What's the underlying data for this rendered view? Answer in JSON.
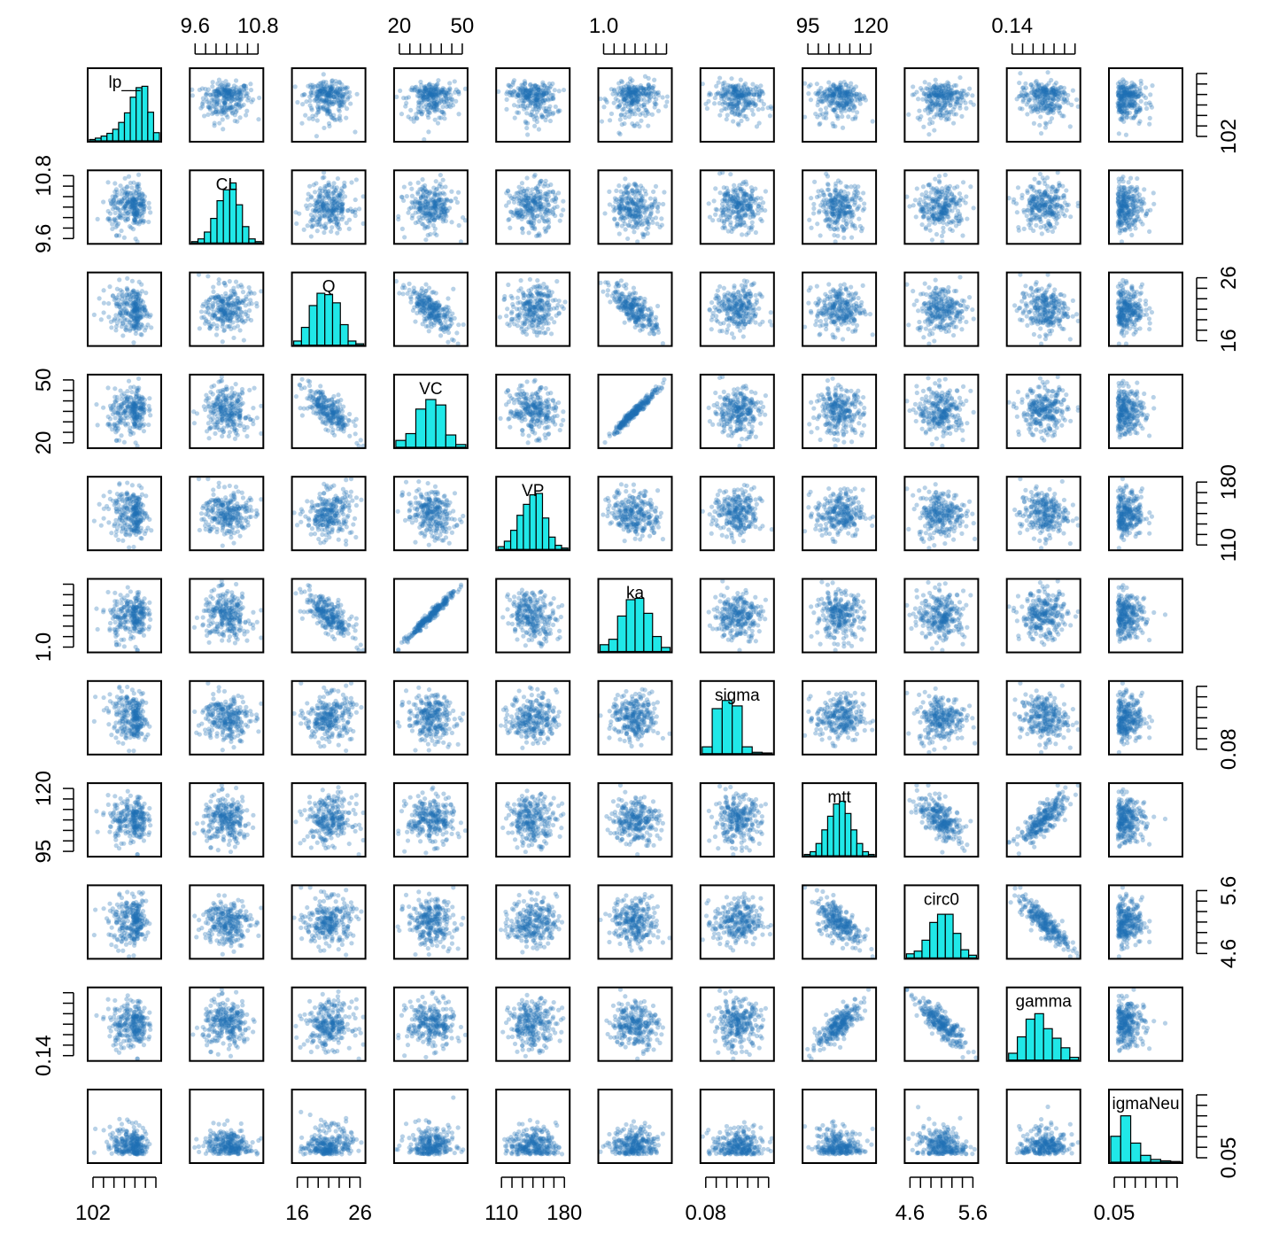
{
  "chart_data": {
    "type": "scatter",
    "subtype": "pairs-plot",
    "title": "",
    "variables": [
      "lp__",
      "CL",
      "Q",
      "VC",
      "VP",
      "ka",
      "sigma",
      "mtt",
      "circ0",
      "gamma",
      "sigmaNeu"
    ],
    "diagonal_labels": [
      "lp__",
      "CL",
      "Q",
      "VC",
      "VP",
      "ka",
      "sigma",
      "mtt",
      "circ0",
      "gamma",
      "igmaNeu"
    ],
    "axis_ticks": {
      "top": [
        {
          "var": 1,
          "labels": [
            "9.6",
            "10.8"
          ]
        },
        {
          "var": 3,
          "labels": [
            "20",
            "50"
          ]
        },
        {
          "var": 5,
          "labels": [
            "1.0"
          ]
        },
        {
          "var": 7,
          "labels": [
            "95",
            "120"
          ]
        },
        {
          "var": 9,
          "labels": [
            "0.14"
          ]
        }
      ],
      "bottom": [
        {
          "var": 0,
          "labels": [
            "102"
          ]
        },
        {
          "var": 2,
          "labels": [
            "16",
            "26"
          ]
        },
        {
          "var": 4,
          "labels": [
            "110",
            "180"
          ]
        },
        {
          "var": 6,
          "labels": [
            "0.08"
          ]
        },
        {
          "var": 8,
          "labels": [
            "4.6",
            "5.6"
          ]
        },
        {
          "var": 10,
          "labels": [
            "0.05"
          ]
        }
      ],
      "left": [
        {
          "var": 1,
          "labels": [
            "9.6",
            "10.8"
          ]
        },
        {
          "var": 3,
          "labels": [
            "20",
            "50"
          ]
        },
        {
          "var": 5,
          "labels": [
            "1.0"
          ]
        },
        {
          "var": 7,
          "labels": [
            "95",
            "120"
          ]
        },
        {
          "var": 9,
          "labels": [
            "0.14"
          ]
        }
      ],
      "right": [
        {
          "var": 0,
          "labels": [
            "102"
          ]
        },
        {
          "var": 2,
          "labels": [
            "16",
            "26"
          ]
        },
        {
          "var": 4,
          "labels": [
            "110",
            "180"
          ]
        },
        {
          "var": 6,
          "labels": [
            "0.08"
          ]
        },
        {
          "var": 8,
          "labels": [
            "4.6",
            "5.6"
          ]
        },
        {
          "var": 10,
          "labels": [
            "0.05"
          ]
        }
      ]
    },
    "histograms": [
      [
        0.02,
        0.04,
        0.07,
        0.11,
        0.17,
        0.27,
        0.41,
        0.64,
        0.78,
        0.8,
        0.42,
        0.12
      ],
      [
        0.02,
        0.06,
        0.16,
        0.36,
        0.62,
        0.78,
        0.88,
        0.56,
        0.24,
        0.06,
        0.02
      ],
      [
        0.06,
        0.26,
        0.58,
        0.76,
        0.74,
        0.62,
        0.3,
        0.06,
        0.02
      ],
      [
        0.1,
        0.2,
        0.56,
        0.7,
        0.62,
        0.18,
        0.04
      ],
      [
        0.04,
        0.12,
        0.28,
        0.5,
        0.66,
        0.8,
        0.82,
        0.46,
        0.18,
        0.06,
        0.02
      ],
      [
        0.1,
        0.18,
        0.52,
        0.76,
        0.78,
        0.56,
        0.22,
        0.06
      ],
      [
        0.1,
        0.66,
        0.78,
        0.7,
        0.1,
        0.02,
        0.01
      ],
      [
        0.02,
        0.06,
        0.18,
        0.38,
        0.58,
        0.76,
        0.8,
        0.62,
        0.38,
        0.18,
        0.06,
        0.02
      ],
      [
        0.06,
        0.1,
        0.26,
        0.52,
        0.64,
        0.64,
        0.36,
        0.12,
        0.04
      ],
      [
        0.1,
        0.34,
        0.6,
        0.68,
        0.46,
        0.32,
        0.18,
        0.04
      ],
      [
        0.38,
        0.68,
        0.28,
        0.1,
        0.04,
        0.02,
        0.01
      ]
    ],
    "correlations": [
      [
        1,
        0.05,
        -0.15,
        0.1,
        -0.1,
        0.1,
        -0.2,
        0.05,
        0.05,
        0.05,
        -0.25
      ],
      [
        0.05,
        1,
        0.1,
        -0.05,
        0,
        -0.05,
        0,
        0,
        0,
        0,
        0
      ],
      [
        -0.15,
        0.1,
        1,
        -0.7,
        0.1,
        -0.72,
        0,
        0,
        0,
        0,
        0
      ],
      [
        0.1,
        -0.05,
        -0.7,
        1,
        -0.2,
        0.98,
        0,
        0,
        0,
        0,
        0
      ],
      [
        -0.1,
        0,
        0.1,
        -0.2,
        1,
        -0.2,
        0,
        0,
        0,
        0,
        0
      ],
      [
        0.1,
        -0.05,
        -0.72,
        0.98,
        -0.2,
        1,
        0,
        0,
        0,
        0,
        0
      ],
      [
        -0.2,
        0,
        0,
        0,
        0,
        0,
        1,
        0,
        0,
        0,
        0
      ],
      [
        0.05,
        0,
        0,
        0,
        0,
        0,
        0,
        1,
        -0.6,
        0.8,
        0
      ],
      [
        0.05,
        0,
        0,
        0,
        0,
        0,
        0,
        -0.6,
        1,
        -0.85,
        0
      ],
      [
        0.05,
        0,
        0,
        0,
        0,
        0,
        0,
        0.8,
        -0.85,
        1,
        0
      ],
      [
        -0.25,
        0,
        0,
        0,
        0,
        0,
        0,
        0,
        0,
        0,
        1
      ]
    ],
    "colors": {
      "point": "#1f6fb4",
      "histogram_fill": "#20e8e8",
      "frame": "#000000"
    },
    "grid": false
  }
}
